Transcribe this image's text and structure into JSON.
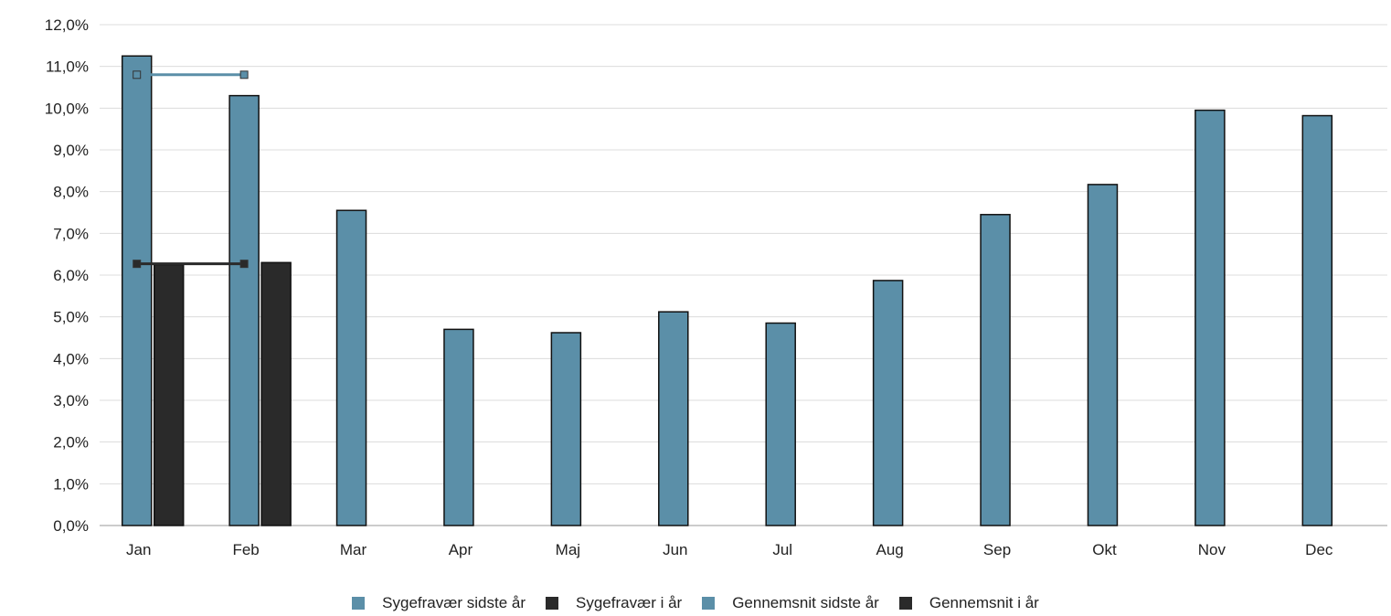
{
  "chart_data": {
    "type": "bar",
    "categories": [
      "Jan",
      "Feb",
      "Mar",
      "Apr",
      "Maj",
      "Jun",
      "Jul",
      "Aug",
      "Sep",
      "Okt",
      "Nov",
      "Dec"
    ],
    "series": [
      {
        "name": "Sygefravær sidste år",
        "kind": "bar",
        "color": "#5b8fa8",
        "values": [
          11.25,
          10.3,
          7.55,
          4.7,
          4.62,
          5.12,
          4.85,
          5.87,
          7.45,
          8.17,
          9.95,
          9.82
        ]
      },
      {
        "name": "Sygefravær i år",
        "kind": "bar",
        "color": "#2a2a2a",
        "values": [
          6.25,
          6.3,
          null,
          null,
          null,
          null,
          null,
          null,
          null,
          null,
          null,
          null
        ]
      },
      {
        "name": "Gennemsnit sidste år",
        "kind": "line",
        "color": "#5b8fa8",
        "values": [
          10.8,
          10.8,
          null,
          null,
          null,
          null,
          null,
          null,
          null,
          null,
          null,
          null
        ]
      },
      {
        "name": "Gennemsnit i år",
        "kind": "line",
        "color": "#2a2a2a",
        "values": [
          6.27,
          6.27,
          null,
          null,
          null,
          null,
          null,
          null,
          null,
          null,
          null,
          null
        ]
      }
    ],
    "yticks": [
      "0,0%",
      "1,0%",
      "2,0%",
      "3,0%",
      "4,0%",
      "5,0%",
      "6,0%",
      "7,0%",
      "8,0%",
      "9,0%",
      "10,0%",
      "11,0%",
      "12,0%"
    ],
    "ylim": [
      0,
      12
    ],
    "grid": true,
    "legend_position": "bottom"
  }
}
